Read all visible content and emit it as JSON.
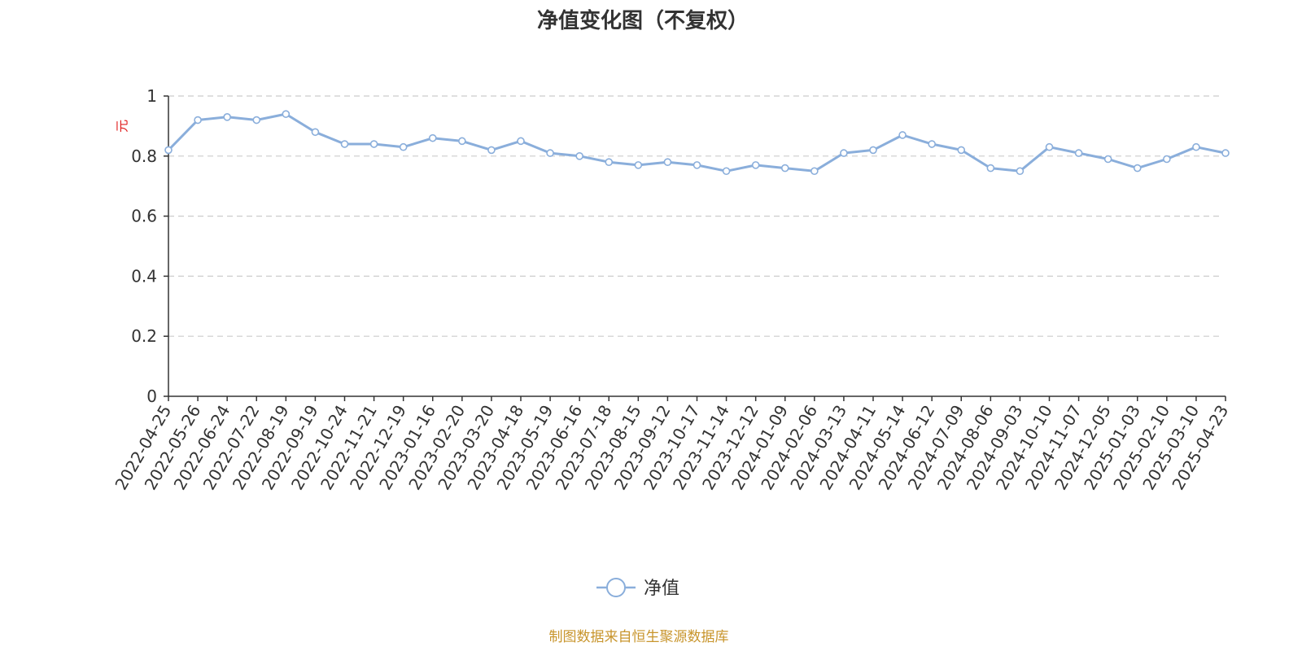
{
  "colors": {
    "line": "#8aaedb",
    "marker_fill": "#ffffff",
    "axis": "#333333",
    "grid": "#cccccc",
    "y_unit": "#e02020",
    "source": "#c8952c"
  },
  "source_note": "制图数据来自恒生聚源数据库",
  "chart_data": {
    "type": "line",
    "title": "净值变化图（不复权）",
    "ylabel": "元",
    "xlabel": "",
    "ylim": [
      0,
      1
    ],
    "yticks": [
      "0",
      "0.2",
      "0.4",
      "0.6",
      "0.8",
      "1"
    ],
    "grid": true,
    "legend": "bottom-center",
    "x_tick_labels": [
      "2022-04-25",
      "2022-05-26",
      "2022-06-24",
      "2022-07-22",
      "2022-08-19",
      "2022-09-19",
      "2022-10-24",
      "2022-11-21",
      "2022-12-19",
      "2023-01-16",
      "2023-02-20",
      "2023-03-20",
      "2023-04-18",
      "2023-05-19",
      "2023-06-16",
      "2023-07-18",
      "2023-08-15",
      "2023-09-12",
      "2023-10-17",
      "2023-11-14",
      "2023-12-12",
      "2024-01-09",
      "2024-02-06",
      "2024-03-13",
      "2024-04-11",
      "2024-05-14",
      "2024-06-12",
      "2024-07-09",
      "2024-08-06",
      "2024-09-03",
      "2024-10-10",
      "2024-11-07",
      "2024-12-05",
      "2025-01-03",
      "2025-02-10",
      "2025-03-10",
      "2025-04-23"
    ],
    "series": [
      {
        "name": "净值",
        "x": [
          "2022-04-25",
          "2022-05-26",
          "2022-06-24",
          "2022-07-22",
          "2022-08-19",
          "2022-09-19",
          "2022-10-24",
          "2022-11-21",
          "2022-12-19",
          "2023-01-16",
          "2023-02-20",
          "2023-03-20",
          "2023-04-18",
          "2023-05-19",
          "2023-06-16",
          "2023-07-18",
          "2023-08-15",
          "2023-09-12",
          "2023-10-17",
          "2023-11-14",
          "2023-12-12",
          "2024-01-09",
          "2024-02-06",
          "2024-03-13",
          "2024-04-11",
          "2024-05-14",
          "2024-06-12",
          "2024-07-09",
          "2024-08-06",
          "2024-09-03",
          "2024-10-10",
          "2024-11-07",
          "2024-12-05",
          "2025-01-03",
          "2025-02-10",
          "2025-03-10",
          "2025-04-23"
        ],
        "values": [
          0.82,
          0.92,
          0.93,
          0.92,
          0.94,
          0.88,
          0.84,
          0.84,
          0.83,
          0.86,
          0.85,
          0.82,
          0.85,
          0.81,
          0.8,
          0.78,
          0.77,
          0.78,
          0.77,
          0.75,
          0.77,
          0.76,
          0.75,
          0.81,
          0.82,
          0.87,
          0.84,
          0.82,
          0.76,
          0.75,
          0.83,
          0.81,
          0.79,
          0.76,
          0.79,
          0.83,
          0.81
        ]
      }
    ]
  }
}
